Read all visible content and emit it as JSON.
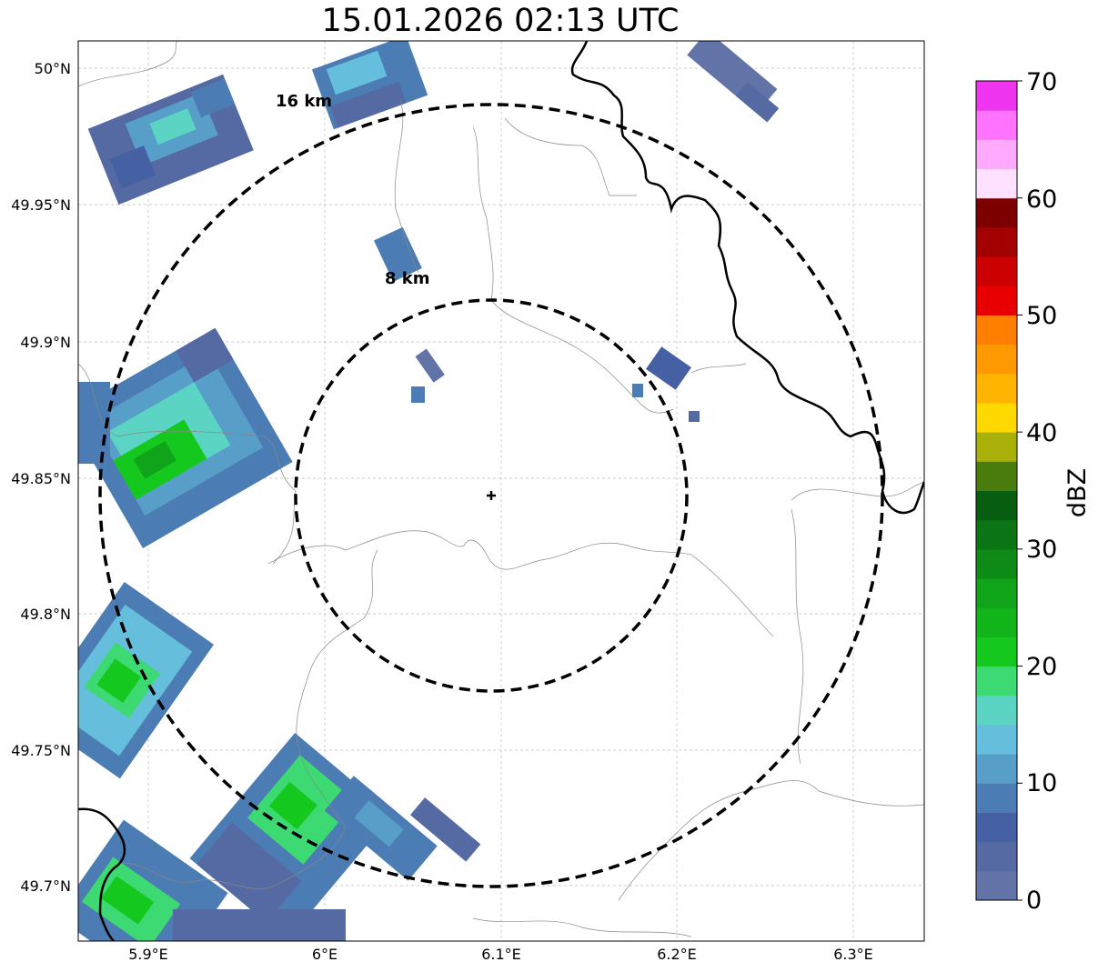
{
  "title": "15.01.2026 02:13 UTC",
  "map": {
    "lat_ticks": [
      "50°N",
      "49.95°N",
      "49.9°N",
      "49.85°N",
      "49.8°N",
      "49.75°N",
      "49.7°N"
    ],
    "lon_ticks": [
      "5.9°E",
      "6°E",
      "6.1°E",
      "6.2°E",
      "6.3°E"
    ],
    "range_rings": [
      {
        "label": "16 km",
        "radius_km": 16
      },
      {
        "label": "8 km",
        "radius_km": 8
      }
    ]
  },
  "colorbar": {
    "label": "dBZ",
    "ticks": [
      "0",
      "10",
      "20",
      "30",
      "40",
      "50",
      "60",
      "70"
    ],
    "colors": [
      "#6273a7",
      "#5569a3",
      "#4660a4",
      "#4c7cb4",
      "#579ec8",
      "#64bedc",
      "#5cd4c4",
      "#3dd972",
      "#14c81e",
      "#11b51a",
      "#0fa41a",
      "#0e8a16",
      "#0b7414",
      "#075e10",
      "#4b7d0e",
      "#aab00a",
      "#ffd800",
      "#ffb500",
      "#ff9900",
      "#ff7f00",
      "#e80000",
      "#cc0000",
      "#a30000",
      "#7d0000",
      "#ffe0ff",
      "#ffaaff",
      "#ff73ff",
      "#f035f0"
    ]
  }
}
